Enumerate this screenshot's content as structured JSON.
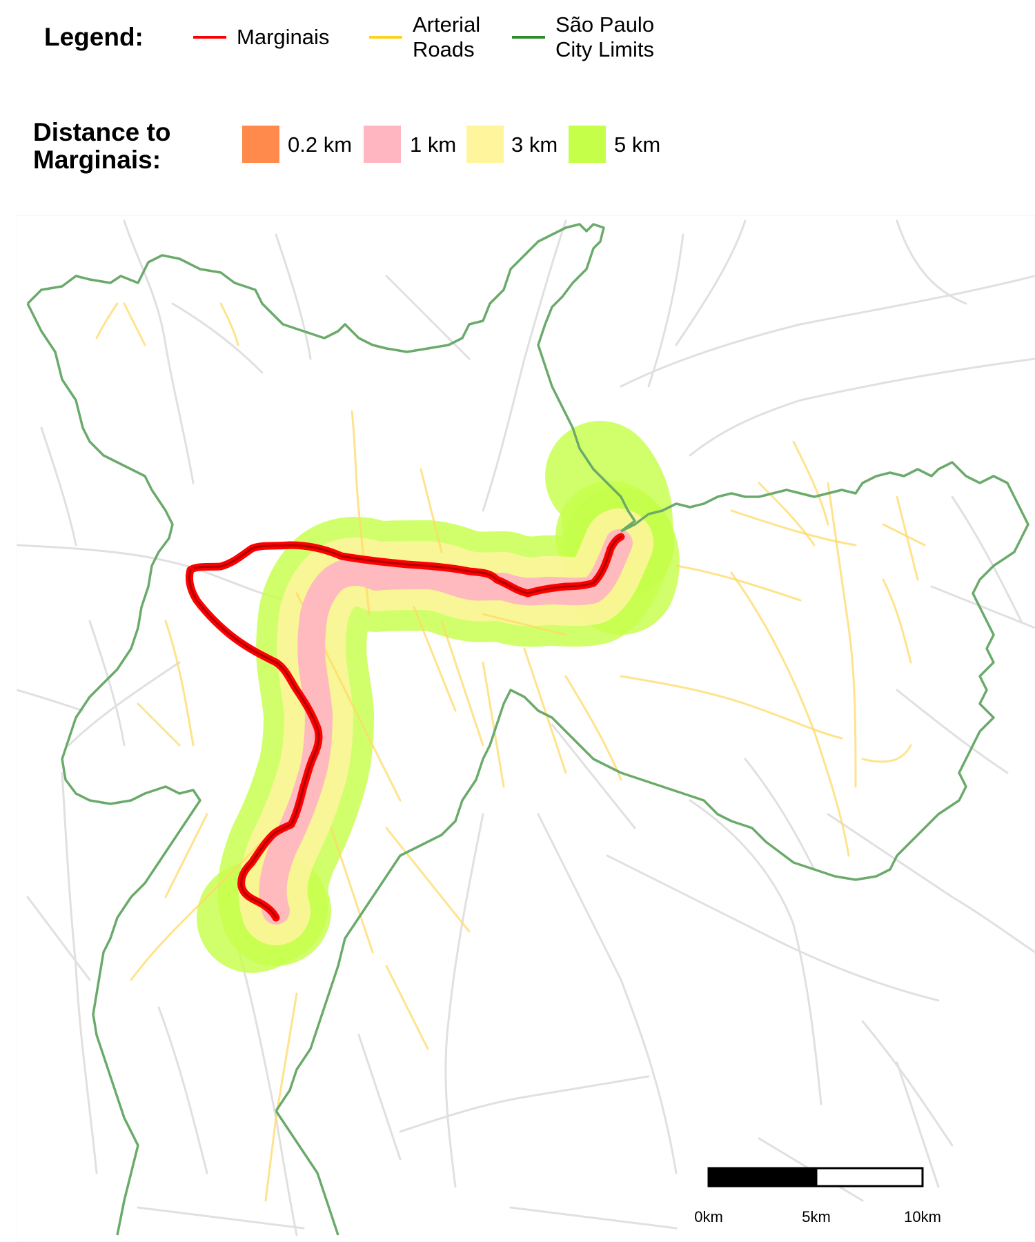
{
  "legend": {
    "title": "Legend:",
    "lines": [
      {
        "label_line1": "Marginais",
        "label_line2": "",
        "color": "#ff0000"
      },
      {
        "label_line1": "Arterial",
        "label_line2": "Roads",
        "color": "#ffd21f"
      },
      {
        "label_line1": "São Paulo",
        "label_line2": "City Limits",
        "color": "#2e8b2e"
      }
    ]
  },
  "distance_legend": {
    "title_line1": "Distance to",
    "title_line2": "Marginais:",
    "buffers": [
      {
        "label": "0.2 km",
        "color": "#ff8a4c"
      },
      {
        "label": "1 km",
        "color": "#ffb6c1"
      },
      {
        "label": "3 km",
        "color": "#fff59d"
      },
      {
        "label": "5 km",
        "color": "#c6ff4a"
      }
    ]
  },
  "scale_bar": {
    "labels": [
      "0km",
      "5km",
      "10km"
    ]
  },
  "colors": {
    "background_roads": "#e0e0e0",
    "arterial": "#ffd966",
    "city_limits": "#6aaa6a",
    "marginais": "#ff0000",
    "marginais_inner": "#b00000"
  }
}
